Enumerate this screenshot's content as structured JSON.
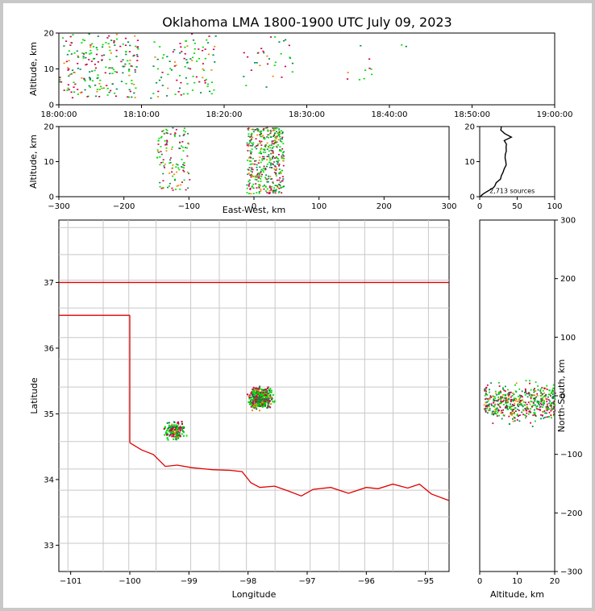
{
  "title": "Oklahoma LMA 1800-1900 UTC July 09, 2023",
  "colors": {
    "frame_bg": "#c8c8c8",
    "state_line": "#e00000",
    "county_line": "#c8c8c8",
    "early": "#00dd00",
    "mid": "#00884a",
    "late": "#cc0044",
    "late2": "#ee8800"
  },
  "chart_data": [
    {
      "id": "time_height",
      "type": "scatter",
      "xlabel": "",
      "ylabel": "Altitude, km",
      "x_ticks": [
        "18:00:00",
        "18:10:00",
        "18:20:00",
        "18:30:00",
        "18:40:00",
        "18:50:00",
        "19:00:00"
      ],
      "xlim_minutes": [
        0,
        60
      ],
      "ylim": [
        0,
        20
      ],
      "y_ticks": [
        0,
        10,
        20
      ],
      "source_clusters": [
        {
          "t_range": [
            0,
            4.5
          ],
          "alt_range": [
            2,
            20
          ],
          "n": 95
        },
        {
          "t_range": [
            4.5,
            9.5
          ],
          "alt_range": [
            2,
            20
          ],
          "n": 110
        },
        {
          "t_range": [
            11,
            15
          ],
          "alt_range": [
            2,
            19
          ],
          "n": 40
        },
        {
          "t_range": [
            15,
            19
          ],
          "alt_range": [
            3,
            20
          ],
          "n": 60
        },
        {
          "t_range": [
            22,
            27
          ],
          "alt_range": [
            5,
            20
          ],
          "n": 25
        },
        {
          "t_range": [
            27,
            28.5
          ],
          "alt_range": [
            6,
            19
          ],
          "n": 8
        },
        {
          "t_range": [
            34.5,
            38
          ],
          "alt_range": [
            4,
            18
          ],
          "n": 10
        },
        {
          "t_range": [
            41,
            42
          ],
          "alt_range": [
            16,
            17
          ],
          "n": 2
        }
      ]
    },
    {
      "id": "ew_height",
      "type": "scatter",
      "xlabel": "East-West, km",
      "ylabel": "Altitude, km",
      "xlim": [
        -300,
        300
      ],
      "x_ticks": [
        -300,
        -200,
        -100,
        0,
        100,
        200,
        300
      ],
      "ylim": [
        0,
        20
      ],
      "y_ticks": [
        0,
        10,
        20
      ],
      "source_clusters": [
        {
          "x_range": [
            -150,
            -100
          ],
          "alt_range": [
            2,
            20
          ],
          "n": 120
        },
        {
          "x_range": [
            -12,
            45
          ],
          "alt_range": [
            1,
            20
          ],
          "n": 420
        }
      ]
    },
    {
      "id": "height_histogram",
      "type": "line",
      "xlim": [
        0,
        100
      ],
      "x_ticks": [
        0,
        50,
        100
      ],
      "ylim": [
        0,
        20
      ],
      "y_ticks": [
        0,
        10,
        20
      ],
      "annotation": "2,713 sources",
      "profile": [
        [
          1,
          0
        ],
        [
          3,
          0.5
        ],
        [
          6,
          1
        ],
        [
          10,
          1.5
        ],
        [
          14,
          2
        ],
        [
          18,
          2.5
        ],
        [
          20,
          3
        ],
        [
          24,
          4
        ],
        [
          26,
          5
        ],
        [
          30,
          6
        ],
        [
          32,
          7
        ],
        [
          33,
          8
        ],
        [
          34,
          9
        ],
        [
          35,
          10
        ],
        [
          34,
          11
        ],
        [
          36,
          12
        ],
        [
          35,
          13
        ],
        [
          38,
          14
        ],
        [
          37,
          15
        ],
        [
          34,
          16
        ],
        [
          40,
          17
        ],
        [
          33,
          18
        ],
        [
          30,
          19
        ],
        [
          26,
          20
        ]
      ]
    },
    {
      "id": "plan_view",
      "type": "scatter",
      "xlabel": "Longitude",
      "ylabel": "Latitude",
      "xlim": [
        -101.2,
        -94.6
      ],
      "x_ticks": [
        -101,
        -100,
        -99,
        -98,
        -97,
        -96,
        -95
      ],
      "ylim": [
        32.6,
        37.95
      ],
      "y_ticks": [
        33,
        34,
        35,
        36,
        37
      ],
      "source_clusters": [
        {
          "lon": -97.8,
          "lat": 35.25,
          "spread": 0.22,
          "n": 430
        },
        {
          "lon": -99.25,
          "lat": 34.75,
          "spread": 0.18,
          "n": 150
        }
      ]
    },
    {
      "id": "ns_height",
      "type": "scatter",
      "xlabel": "Altitude, km",
      "ylabel": "North-South, km",
      "xlim": [
        0,
        20
      ],
      "x_ticks": [
        0,
        10,
        20
      ],
      "ylim": [
        -300,
        300
      ],
      "y_ticks": [
        -300,
        -200,
        -100,
        0,
        100,
        200,
        300
      ],
      "source_clusters": [
        {
          "alt_range": [
            1,
            20
          ],
          "ns_center": -10,
          "ns_spread": 45,
          "n": 520
        }
      ]
    }
  ]
}
